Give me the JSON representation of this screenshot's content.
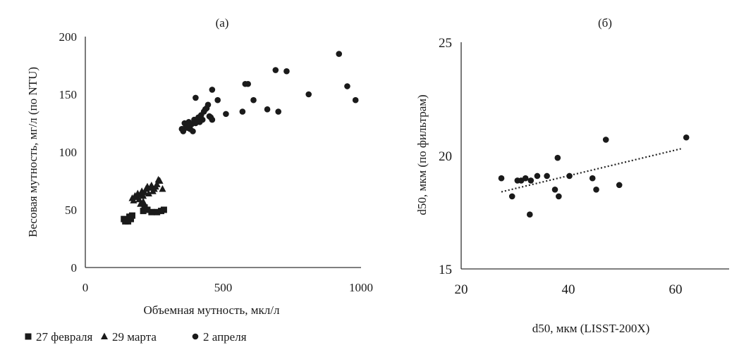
{
  "chart_data": [
    {
      "panel_label": "(а)",
      "type": "scatter",
      "xlabel": "Объемная мутность, мкл/л",
      "ylabel": "Весовая мутность, мг/л (по NTU)",
      "xlim": [
        0,
        1000
      ],
      "ylim": [
        0,
        200
      ],
      "xticks": [
        "0",
        "500",
        "1000"
      ],
      "yticks": [
        "0",
        "50",
        "100",
        "150",
        "200"
      ],
      "grid": false,
      "legend_position": "bottom",
      "series": [
        {
          "name": "27 февраля",
          "marker": "square",
          "points": [
            [
              140,
              42
            ],
            [
              145,
              40
            ],
            [
              150,
              41
            ],
            [
              155,
              40
            ],
            [
              160,
              44
            ],
            [
              165,
              42
            ],
            [
              170,
              45
            ],
            [
              210,
              49
            ],
            [
              215,
              52
            ],
            [
              225,
              50
            ],
            [
              240,
              48
            ],
            [
              260,
              48
            ],
            [
              275,
              49
            ],
            [
              285,
              50
            ]
          ]
        },
        {
          "name": "29 марта",
          "marker": "triangle",
          "points": [
            [
              170,
              60
            ],
            [
              175,
              58
            ],
            [
              180,
              62
            ],
            [
              185,
              61
            ],
            [
              190,
              64
            ],
            [
              195,
              59
            ],
            [
              200,
              63
            ],
            [
              205,
              66
            ],
            [
              210,
              62
            ],
            [
              215,
              65
            ],
            [
              220,
              68
            ],
            [
              225,
              70
            ],
            [
              230,
              64
            ],
            [
              235,
              69
            ],
            [
              240,
              71
            ],
            [
              245,
              66
            ],
            [
              250,
              68
            ],
            [
              255,
              70
            ],
            [
              260,
              72
            ],
            [
              265,
              76
            ],
            [
              270,
              75
            ],
            [
              280,
              68
            ],
            [
              200,
              55
            ],
            [
              210,
              57
            ]
          ]
        },
        {
          "name": "2 апреля",
          "marker": "circle",
          "points": [
            [
              350,
              120
            ],
            [
              355,
              118
            ],
            [
              360,
              125
            ],
            [
              365,
              122
            ],
            [
              370,
              121
            ],
            [
              375,
              126
            ],
            [
              380,
              120
            ],
            [
              385,
              124
            ],
            [
              390,
              118
            ],
            [
              395,
              128
            ],
            [
              400,
              125
            ],
            [
              405,
              127
            ],
            [
              410,
              130
            ],
            [
              415,
              126
            ],
            [
              420,
              132
            ],
            [
              425,
              128
            ],
            [
              430,
              135
            ],
            [
              435,
              137
            ],
            [
              440,
              138
            ],
            [
              445,
              141
            ],
            [
              450,
              131
            ],
            [
              455,
              130
            ],
            [
              460,
              128
            ],
            [
              400,
              147
            ],
            [
              460,
              154
            ],
            [
              480,
              145
            ],
            [
              510,
              133
            ],
            [
              570,
              135
            ],
            [
              580,
              159
            ],
            [
              590,
              159
            ],
            [
              610,
              145
            ],
            [
              660,
              137
            ],
            [
              690,
              171
            ],
            [
              700,
              135
            ],
            [
              730,
              170
            ],
            [
              810,
              150
            ],
            [
              920,
              185
            ],
            [
              950,
              157
            ],
            [
              980,
              145
            ]
          ]
        }
      ]
    },
    {
      "panel_label": "(б)",
      "type": "scatter",
      "xlabel": "d50, мкм (LISST-200X)",
      "ylabel": "d50, мкм (по фильтрам)",
      "xlim": [
        20,
        70
      ],
      "ylim": [
        15,
        25
      ],
      "xticks": [
        "20",
        "40",
        "60"
      ],
      "yticks": [
        "15",
        "20",
        "25"
      ],
      "grid": false,
      "trendline": {
        "style": "dotted",
        "x": [
          27.5,
          61
        ],
        "y": [
          18.4,
          20.3
        ]
      },
      "series": [
        {
          "name": "",
          "marker": "circle",
          "points": [
            [
              27.5,
              19.0
            ],
            [
              29.5,
              18.2
            ],
            [
              30.5,
              18.9
            ],
            [
              31.2,
              18.9
            ],
            [
              32.0,
              19.0
            ],
            [
              32.8,
              17.4
            ],
            [
              33.0,
              18.9
            ],
            [
              34.2,
              19.1
            ],
            [
              36.0,
              19.1
            ],
            [
              37.5,
              18.5
            ],
            [
              38.0,
              19.9
            ],
            [
              38.2,
              18.2
            ],
            [
              40.2,
              19.1
            ],
            [
              44.5,
              19.0
            ],
            [
              45.2,
              18.5
            ],
            [
              47.0,
              20.7
            ],
            [
              49.5,
              18.7
            ],
            [
              62.0,
              20.8
            ]
          ]
        }
      ]
    }
  ]
}
